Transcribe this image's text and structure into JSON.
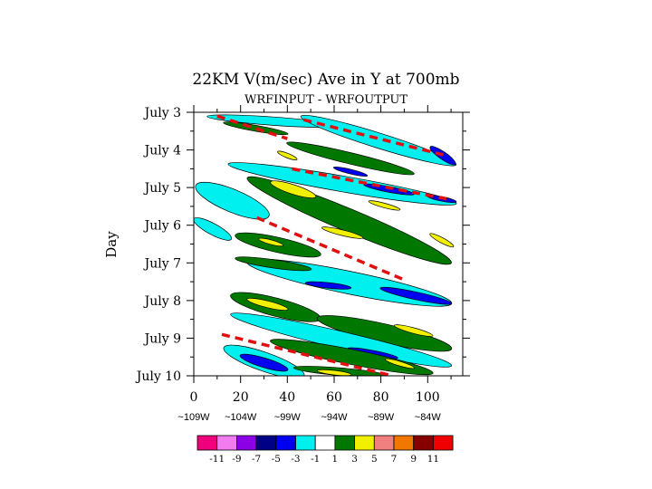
{
  "chart_data": {
    "type": "heatmap",
    "title": "22KM V(m/sec) Ave in Y at 700mb",
    "subtitle": "WRFINPUT - WRFOUTPUT",
    "ylabel": "Day",
    "xlim": [
      0,
      115
    ],
    "x_ticks": [
      0,
      20,
      40,
      60,
      80,
      100
    ],
    "longitude_labels": [
      "~109W",
      "~104W",
      "~99W",
      "~94W",
      "~89W",
      "~84W"
    ],
    "y_ticks": [
      "July 3",
      "July 4",
      "July 5",
      "July 6",
      "July 7",
      "July 8",
      "July 9",
      "July 10"
    ],
    "ylim_days": [
      3,
      10
    ],
    "colorbar": {
      "colors": [
        "#f0007a",
        "#f07cf0",
        "#8c00e6",
        "#000087",
        "#0000f0",
        "#00f0f0",
        "#ffffff",
        "#007800",
        "#f0f000",
        "#f08080",
        "#f07800",
        "#870000",
        "#f00000"
      ],
      "labels": [
        "-11",
        "-9",
        "-7",
        "-5",
        "-3",
        "-1",
        "1",
        "3",
        "5",
        "7",
        "9",
        "11"
      ]
    },
    "bands": [
      {
        "value": -2,
        "x0": 8,
        "y0": 3.12,
        "x1": 60,
        "y1": 3.35,
        "w": 0.22
      },
      {
        "value": 2,
        "x0": 15,
        "y0": 3.3,
        "x1": 38,
        "y1": 3.55,
        "w": 0.16
      },
      {
        "value": -2,
        "x0": 48,
        "y0": 3.15,
        "x1": 110,
        "y1": 4.35,
        "w": 0.4
      },
      {
        "value": -4,
        "x0": 103,
        "y0": 4.0,
        "x1": 110,
        "y1": 4.3,
        "w": 0.2
      },
      {
        "value": 2,
        "x0": 42,
        "y0": 3.85,
        "x1": 92,
        "y1": 4.6,
        "w": 0.3
      },
      {
        "value": 4,
        "x0": 38,
        "y0": 4.1,
        "x1": 42,
        "y1": 4.2,
        "w": 0.1
      },
      {
        "value": -2,
        "x0": 17,
        "y0": 4.4,
        "x1": 110,
        "y1": 5.4,
        "w": 0.42
      },
      {
        "value": -4,
        "x0": 62,
        "y0": 4.5,
        "x1": 72,
        "y1": 4.65,
        "w": 0.12
      },
      {
        "value": -4,
        "x0": 75,
        "y0": 4.95,
        "x1": 92,
        "y1": 5.15,
        "w": 0.15
      },
      {
        "value": -4,
        "x0": 102,
        "y0": 5.25,
        "x1": 110,
        "y1": 5.35,
        "w": 0.1
      },
      {
        "value": 2,
        "x0": 25,
        "y0": 4.8,
        "x1": 108,
        "y1": 6.95,
        "w": 0.6
      },
      {
        "value": 4,
        "x0": 35,
        "y0": 4.9,
        "x1": 50,
        "y1": 5.2,
        "w": 0.25
      },
      {
        "value": 4,
        "x0": 77,
        "y0": 5.4,
        "x1": 86,
        "y1": 5.55,
        "w": 0.12
      },
      {
        "value": 4,
        "x0": 57,
        "y0": 6.1,
        "x1": 70,
        "y1": 6.3,
        "w": 0.15
      },
      {
        "value": 4,
        "x0": 103,
        "y0": 6.3,
        "x1": 109,
        "y1": 6.5,
        "w": 0.14
      },
      {
        "value": -2,
        "x0": 3,
        "y0": 5.0,
        "x1": 30,
        "y1": 5.7,
        "w": 0.6
      },
      {
        "value": -2,
        "x0": 2,
        "y0": 5.9,
        "x1": 14,
        "y1": 6.3,
        "w": 0.3
      },
      {
        "value": 2,
        "x0": 20,
        "y0": 6.3,
        "x1": 52,
        "y1": 6.75,
        "w": 0.4
      },
      {
        "value": 4,
        "x0": 30,
        "y0": 6.4,
        "x1": 36,
        "y1": 6.5,
        "w": 0.1
      },
      {
        "value": -2,
        "x0": 25,
        "y0": 7.0,
        "x1": 108,
        "y1": 8.05,
        "w": 0.6
      },
      {
        "value": -4,
        "x0": 50,
        "y0": 7.55,
        "x1": 65,
        "y1": 7.65,
        "w": 0.15
      },
      {
        "value": -4,
        "x0": 82,
        "y0": 7.7,
        "x1": 108,
        "y1": 8.05,
        "w": 0.2
      },
      {
        "value": 2,
        "x0": 20,
        "y0": 6.9,
        "x1": 48,
        "y1": 7.15,
        "w": 0.22
      },
      {
        "value": 2,
        "x0": 18,
        "y0": 7.9,
        "x1": 52,
        "y1": 8.45,
        "w": 0.48
      },
      {
        "value": 4,
        "x0": 25,
        "y0": 8.0,
        "x1": 38,
        "y1": 8.2,
        "w": 0.18
      },
      {
        "value": 2,
        "x0": 55,
        "y0": 8.5,
        "x1": 108,
        "y1": 9.25,
        "w": 0.5
      },
      {
        "value": 4,
        "x0": 88,
        "y0": 8.7,
        "x1": 100,
        "y1": 8.9,
        "w": 0.15
      },
      {
        "value": -2,
        "x0": 18,
        "y0": 8.4,
        "x1": 108,
        "y1": 9.7,
        "w": 0.45
      },
      {
        "value": -4,
        "x0": 68,
        "y0": 9.3,
        "x1": 85,
        "y1": 9.5,
        "w": 0.15
      },
      {
        "value": 2,
        "x0": 35,
        "y0": 9.1,
        "x1": 100,
        "y1": 9.9,
        "w": 0.4
      },
      {
        "value": 4,
        "x0": 84,
        "y0": 9.6,
        "x1": 92,
        "y1": 9.75,
        "w": 0.1
      },
      {
        "value": -2,
        "x0": 15,
        "y0": 9.3,
        "x1": 45,
        "y1": 9.95,
        "w": 0.5
      },
      {
        "value": -4,
        "x0": 22,
        "y0": 9.5,
        "x1": 38,
        "y1": 9.8,
        "w": 0.25
      },
      {
        "value": 2,
        "x0": 45,
        "y0": 9.8,
        "x1": 80,
        "y1": 9.98,
        "w": 0.2
      },
      {
        "value": 4,
        "x0": 55,
        "y0": 9.88,
        "x1": 65,
        "y1": 9.95,
        "w": 0.06
      }
    ],
    "dashed_lines": [
      {
        "x0": 10,
        "y0": 3.1,
        "x1": 40,
        "y1": 3.7
      },
      {
        "x0": 47,
        "y0": 3.2,
        "x1": 108,
        "y1": 4.15
      },
      {
        "x0": 42,
        "y0": 4.5,
        "x1": 108,
        "y1": 5.3
      },
      {
        "x0": 27,
        "y0": 5.8,
        "x1": 90,
        "y1": 7.45
      },
      {
        "x0": 12,
        "y0": 8.9,
        "x1": 85,
        "y1": 10.0
      }
    ]
  }
}
